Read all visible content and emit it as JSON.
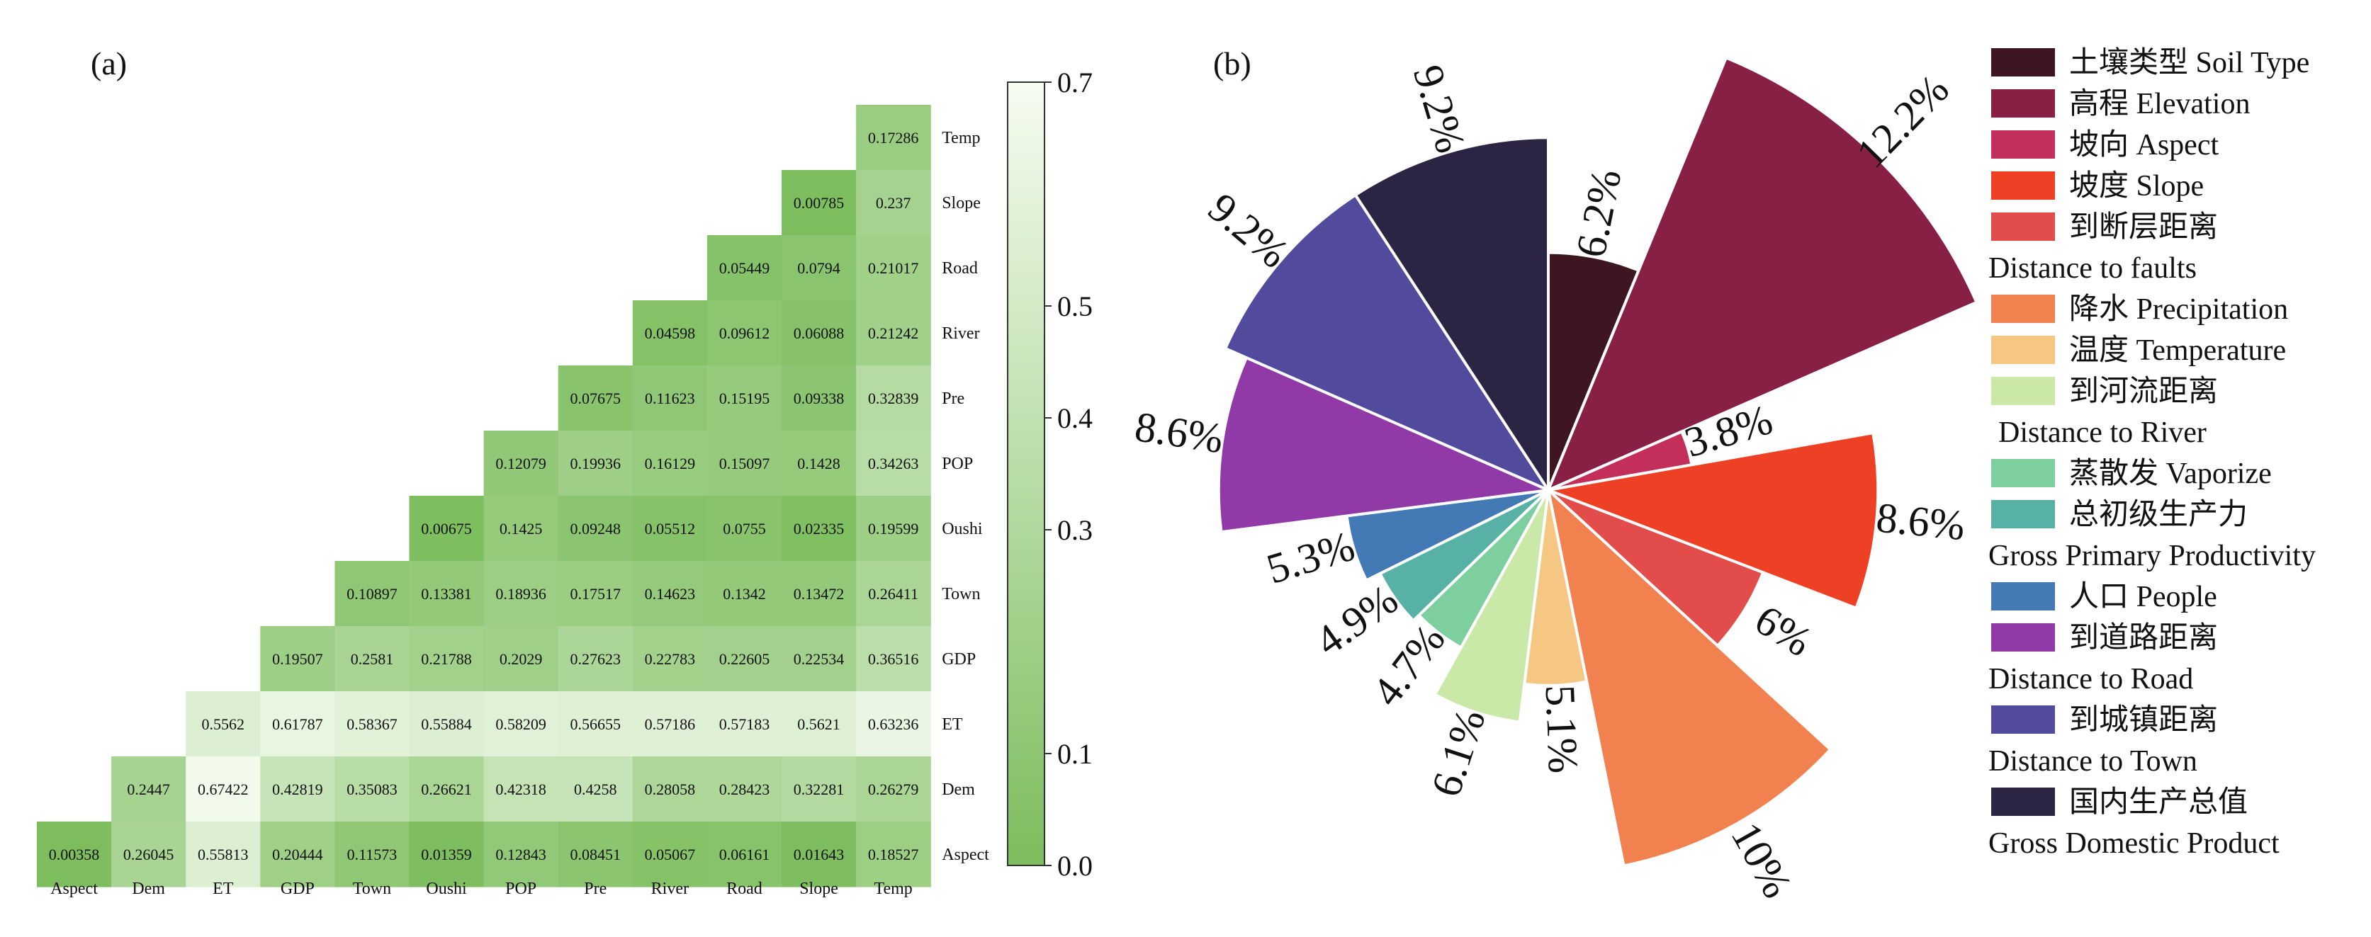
{
  "panel_a": {
    "tag": "(a)"
  },
  "panel_b": {
    "tag": "(b)"
  },
  "chart_data": [
    {
      "type": "heatmap",
      "title": "",
      "x_labels": [
        "Aspect",
        "Dem",
        "ET",
        "GDP",
        "Town",
        "Oushi",
        "POP",
        "Pre",
        "River",
        "Road",
        "Slope",
        "Temp"
      ],
      "y_labels": [
        "Temp",
        "Slope",
        "Road",
        "River",
        "Pre",
        "POP",
        "Oushi",
        "Town",
        "GDP",
        "ET",
        "Dem",
        "Aspect"
      ],
      "matrix": [
        [
          null,
          null,
          null,
          null,
          null,
          null,
          null,
          null,
          null,
          null,
          null,
          "0.17286"
        ],
        [
          null,
          null,
          null,
          null,
          null,
          null,
          null,
          null,
          null,
          null,
          "0.00785",
          "0.237"
        ],
        [
          null,
          null,
          null,
          null,
          null,
          null,
          null,
          null,
          null,
          "0.05449",
          "0.0794",
          "0.21017"
        ],
        [
          null,
          null,
          null,
          null,
          null,
          null,
          null,
          null,
          "0.04598",
          "0.09612",
          "0.06088",
          "0.21242"
        ],
        [
          null,
          null,
          null,
          null,
          null,
          null,
          null,
          "0.07675",
          "0.11623",
          "0.15195",
          "0.09338",
          "0.32839"
        ],
        [
          null,
          null,
          null,
          null,
          null,
          null,
          "0.12079",
          "0.19936",
          "0.16129",
          "0.15097",
          "0.1428",
          "0.34263"
        ],
        [
          null,
          null,
          null,
          null,
          null,
          "0.00675",
          "0.1425",
          "0.09248",
          "0.05512",
          "0.0755",
          "0.02335",
          "0.19599"
        ],
        [
          null,
          null,
          null,
          null,
          "0.10897",
          "0.13381",
          "0.18936",
          "0.17517",
          "0.14623",
          "0.1342",
          "0.13472",
          "0.26411"
        ],
        [
          null,
          null,
          null,
          "0.19507",
          "0.2581",
          "0.21788",
          "0.2029",
          "0.27623",
          "0.22783",
          "0.22605",
          "0.22534",
          "0.36516"
        ],
        [
          null,
          null,
          "0.5562",
          "0.61787",
          "0.58367",
          "0.55884",
          "0.58209",
          "0.56655",
          "0.57186",
          "0.57183",
          "0.5621",
          "0.63236"
        ],
        [
          null,
          "0.2447",
          "0.67422",
          "0.42819",
          "0.35083",
          "0.26621",
          "0.42318",
          "0.4258",
          "0.28058",
          "0.28423",
          "0.32281",
          "0.26279"
        ],
        [
          "0.00358",
          "0.26045",
          "0.55813",
          "0.20444",
          "0.11573",
          "0.01359",
          "0.12843",
          "0.08451",
          "0.05067",
          "0.06161",
          "0.01643",
          "0.18527"
        ]
      ],
      "colorbar": {
        "range": [
          0.0,
          0.7
        ],
        "ticks": [
          "0.0",
          "0.1",
          "0.3",
          "0.4",
          "0.5",
          "0.7"
        ],
        "color_low": "#7cbd5d",
        "color_high": "#f6fcf1"
      }
    },
    {
      "type": "pie",
      "subtype": "polar-area",
      "title": "",
      "slices": [
        {
          "name": "土壤类型 Soil Type",
          "value": 6.2,
          "label": "6.2%",
          "color": "#3d1621"
        },
        {
          "name": "高程 Elevation",
          "value": 12.2,
          "label": "12.2%",
          "color": "#881f44"
        },
        {
          "name": "坡向 Aspect",
          "value": 3.8,
          "label": "3.8%",
          "color": "#c42e5b"
        },
        {
          "name": "坡度 Slope",
          "value": 8.6,
          "label": "8.6%",
          "color": "#ee4025"
        },
        {
          "name": "到断层距离 Distance to faults",
          "value": 6.0,
          "label": "6%",
          "color": "#e24d4c"
        },
        {
          "name": "降水 Precipitation",
          "value": 10.0,
          "label": "10%",
          "color": "#f28150"
        },
        {
          "name": "温度 Temperature",
          "value": 5.1,
          "label": "5.1%",
          "color": "#f6c683"
        },
        {
          "name": "到河流距离 Distance to River",
          "value": 6.1,
          "label": "6.1%",
          "color": "#cae8a7"
        },
        {
          "name": "蒸散发 Vaporize",
          "value": 4.7,
          "label": "4.7%",
          "color": "#7ecfa0"
        },
        {
          "name": "总初级生产力 Gross Primary Productivity",
          "value": 4.9,
          "label": "4.9%",
          "color": "#57b1a5"
        },
        {
          "name": "人口 People",
          "value": 5.3,
          "label": "5.3%",
          "color": "#4379b5"
        },
        {
          "name": "到道路距离 Distance to Road",
          "value": 8.6,
          "label": "8.6%",
          "color": "#9239a8"
        },
        {
          "name": "到城镇距离 Distance to Town",
          "value": 9.2,
          "label": "9.2%",
          "color": "#524a9c"
        },
        {
          "name": "国内生产总值 Gross Domestic Product",
          "value": 9.2,
          "label": "9.2%",
          "color": "#2c2443"
        }
      ],
      "legend": {
        "placement": "right",
        "lines": [
          {
            "text": "土壤类型 Soil Type",
            "swatch": 0
          },
          {
            "text": "高程 Elevation",
            "swatch": 1
          },
          {
            "text": "坡向 Aspect",
            "swatch": 2
          },
          {
            "text": "坡度 Slope",
            "swatch": 3
          },
          {
            "text": "到断层距离",
            "swatch": 4
          },
          {
            "text": "Distance to faults",
            "swatch": null,
            "indent": false
          },
          {
            "text": "降水 Precipitation",
            "swatch": 5
          },
          {
            "text": "温度 Temperature",
            "swatch": 6
          },
          {
            "text": "到河流距离",
            "swatch": 7
          },
          {
            "text": "Distance to River",
            "swatch": null,
            "indent": true
          },
          {
            "text": "蒸散发 Vaporize",
            "swatch": 8
          },
          {
            "text": "总初级生产力",
            "swatch": 9
          },
          {
            "text": "Gross Primary Productivity",
            "swatch": null,
            "indent": false
          },
          {
            "text": "人口 People",
            "swatch": 10
          },
          {
            "text": "到道路距离",
            "swatch": 11
          },
          {
            "text": "Distance to Road",
            "swatch": null,
            "indent": false
          },
          {
            "text": "到城镇距离",
            "swatch": 12
          },
          {
            "text": "Distance to Town",
            "swatch": null,
            "indent": false
          },
          {
            "text": "国内生产总值",
            "swatch": 13
          },
          {
            "text": "Gross Domestic Product",
            "swatch": null,
            "indent": false
          }
        ]
      }
    }
  ]
}
